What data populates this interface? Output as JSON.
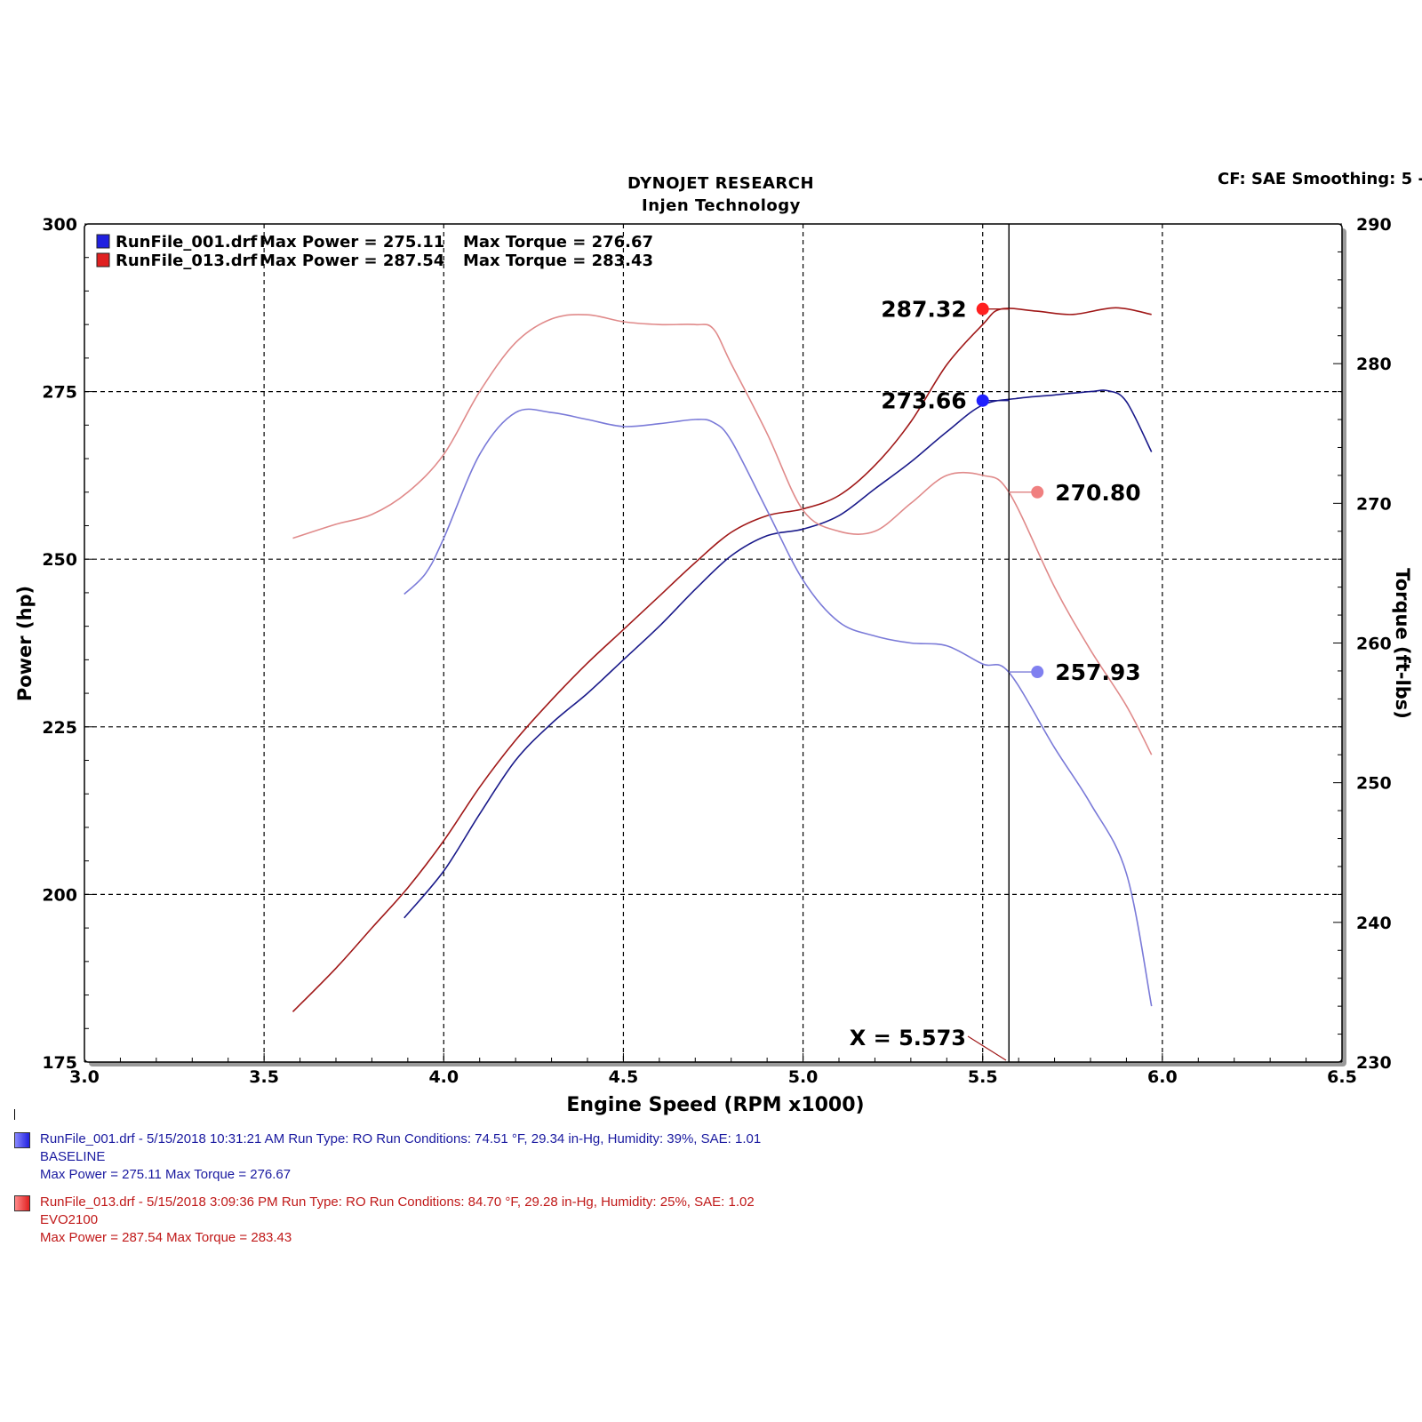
{
  "header": {
    "title_line1": "DYNOJET RESEARCH",
    "title_line2": "Injen Technology",
    "settings": "CF: SAE  Smoothing: 5  -"
  },
  "chart_data": {
    "type": "line",
    "title": "DYNOJET RESEARCH",
    "subtitle": "Injen Technology",
    "xlabel": "Engine Speed (RPM x1000)",
    "ylabel_left": "Power (hp)",
    "ylabel_right": "Torque (ft-lbs)",
    "xlim": [
      3.0,
      6.5
    ],
    "ylim_left": [
      175,
      300
    ],
    "ylim_right": [
      230,
      290
    ],
    "x_ticks": [
      "3.0",
      "3.5",
      "4.0",
      "4.5",
      "5.0",
      "5.5",
      "6.0",
      "6.5"
    ],
    "y_ticks_left": [
      "175",
      "200",
      "225",
      "250",
      "275",
      "300"
    ],
    "y_ticks_right": [
      "230",
      "240",
      "250",
      "260",
      "270",
      "280",
      "290"
    ],
    "grid": true,
    "legend": {
      "placement": "top-left",
      "entries": [
        {
          "file": "RunFile_001.drf",
          "max_power_label": "Max Power = 275.11",
          "max_torque_label": "Max Torque = 276.67",
          "color": "#2020e0"
        },
        {
          "file": "RunFile_013.drf",
          "max_power_label": "Max Power = 287.54",
          "max_torque_label": "Max Torque = 283.43",
          "color": "#e02020"
        }
      ]
    },
    "series": [
      {
        "name": "RunFile_001.drf",
        "measure": "power",
        "axis": "left",
        "color": "#1a1a8a",
        "points": [
          [
            3.89,
            196.5
          ],
          [
            4.0,
            203.5
          ],
          [
            4.1,
            212.0
          ],
          [
            4.2,
            220.0
          ],
          [
            4.3,
            225.5
          ],
          [
            4.4,
            230.0
          ],
          [
            4.5,
            235.0
          ],
          [
            4.6,
            240.0
          ],
          [
            4.7,
            245.5
          ],
          [
            4.8,
            250.5
          ],
          [
            4.9,
            253.5
          ],
          [
            5.0,
            254.5
          ],
          [
            5.1,
            256.5
          ],
          [
            5.2,
            260.5
          ],
          [
            5.3,
            264.5
          ],
          [
            5.4,
            269.0
          ],
          [
            5.5,
            273.0
          ],
          [
            5.6,
            274.0
          ],
          [
            5.7,
            274.5
          ],
          [
            5.8,
            275.0
          ],
          [
            5.85,
            275.1
          ],
          [
            5.9,
            273.5
          ],
          [
            5.97,
            266.0
          ]
        ]
      },
      {
        "name": "RunFile_013.drf",
        "measure": "power",
        "axis": "left",
        "color": "#a01818",
        "points": [
          [
            3.58,
            182.5
          ],
          [
            3.7,
            189.0
          ],
          [
            3.8,
            195.0
          ],
          [
            3.9,
            201.0
          ],
          [
            4.0,
            208.0
          ],
          [
            4.1,
            216.0
          ],
          [
            4.2,
            223.0
          ],
          [
            4.3,
            229.0
          ],
          [
            4.4,
            234.5
          ],
          [
            4.5,
            239.5
          ],
          [
            4.6,
            244.5
          ],
          [
            4.7,
            249.5
          ],
          [
            4.8,
            254.0
          ],
          [
            4.9,
            256.5
          ],
          [
            5.0,
            257.5
          ],
          [
            5.1,
            259.5
          ],
          [
            5.2,
            264.0
          ],
          [
            5.3,
            270.5
          ],
          [
            5.4,
            279.0
          ],
          [
            5.5,
            285.0
          ],
          [
            5.55,
            287.3
          ],
          [
            5.65,
            287.0
          ],
          [
            5.75,
            286.5
          ],
          [
            5.87,
            287.5
          ],
          [
            5.97,
            286.5
          ]
        ]
      },
      {
        "name": "RunFile_001.drf",
        "measure": "torque",
        "axis": "right",
        "color": "#7a7ad8",
        "points": [
          [
            3.89,
            263.5
          ],
          [
            3.95,
            265.0
          ],
          [
            4.0,
            267.5
          ],
          [
            4.1,
            273.5
          ],
          [
            4.2,
            276.5
          ],
          [
            4.3,
            276.5
          ],
          [
            4.4,
            276.0
          ],
          [
            4.5,
            275.5
          ],
          [
            4.6,
            275.7
          ],
          [
            4.7,
            276.0
          ],
          [
            4.75,
            275.8
          ],
          [
            4.8,
            274.5
          ],
          [
            4.9,
            269.5
          ],
          [
            5.0,
            264.5
          ],
          [
            5.1,
            261.5
          ],
          [
            5.2,
            260.5
          ],
          [
            5.3,
            260.0
          ],
          [
            5.4,
            259.8
          ],
          [
            5.5,
            258.5
          ],
          [
            5.573,
            257.9
          ],
          [
            5.7,
            252.5
          ],
          [
            5.8,
            248.5
          ],
          [
            5.9,
            243.5
          ],
          [
            5.97,
            234.0
          ]
        ]
      },
      {
        "name": "RunFile_013.drf",
        "measure": "torque",
        "axis": "right",
        "color": "#e08a8a",
        "points": [
          [
            3.58,
            267.5
          ],
          [
            3.7,
            268.5
          ],
          [
            3.8,
            269.2
          ],
          [
            3.9,
            270.8
          ],
          [
            4.0,
            273.5
          ],
          [
            4.1,
            278.0
          ],
          [
            4.2,
            281.5
          ],
          [
            4.3,
            283.2
          ],
          [
            4.4,
            283.5
          ],
          [
            4.5,
            283.0
          ],
          [
            4.6,
            282.8
          ],
          [
            4.7,
            282.8
          ],
          [
            4.75,
            282.5
          ],
          [
            4.8,
            280.0
          ],
          [
            4.9,
            275.0
          ],
          [
            5.0,
            269.5
          ],
          [
            5.1,
            268.0
          ],
          [
            5.2,
            268.0
          ],
          [
            5.3,
            270.0
          ],
          [
            5.4,
            272.0
          ],
          [
            5.5,
            272.0
          ],
          [
            5.573,
            270.8
          ],
          [
            5.7,
            264.0
          ],
          [
            5.8,
            259.5
          ],
          [
            5.9,
            255.5
          ],
          [
            5.97,
            252.0
          ]
        ]
      }
    ],
    "cursor": {
      "x": 5.573,
      "label": "X = 5.573"
    },
    "annotations": [
      {
        "series": 1,
        "x": 5.5,
        "y": 287.32,
        "axis": "left",
        "label": "287.32",
        "color": "#ff2020",
        "side": "left"
      },
      {
        "series": 0,
        "x": 5.5,
        "y": 273.66,
        "axis": "left",
        "label": "273.66",
        "color": "#2020ff",
        "side": "left"
      },
      {
        "series": 3,
        "x": 5.573,
        "y": 270.8,
        "axis": "right",
        "label": "270.80",
        "color": "#f08080",
        "side": "right"
      },
      {
        "series": 2,
        "x": 5.573,
        "y": 257.93,
        "axis": "right",
        "label": "257.93",
        "color": "#8080f0",
        "side": "right"
      }
    ]
  },
  "footer": [
    {
      "color": "#2020e0",
      "text_color": "#1a1aa0",
      "line1": "RunFile_001.drf - 5/15/2018 10:31:21 AM  Run Type: RO  Run Conditions: 74.51 °F, 29.34 in-Hg,  Humidity:  39%, SAE: 1.01",
      "line2": "BASELINE",
      "line3": "Max Power = 275.11  Max Torque = 276.67"
    },
    {
      "color": "#e02020",
      "text_color": "#c01818",
      "line1": "RunFile_013.drf - 5/15/2018 3:09:36 PM  Run Type: RO  Run Conditions: 84.70 °F, 29.28 in-Hg,  Humidity:  25%, SAE: 1.02",
      "line2": "EVO2100",
      "line3": "Max Power = 287.54  Max Torque = 283.43"
    }
  ]
}
